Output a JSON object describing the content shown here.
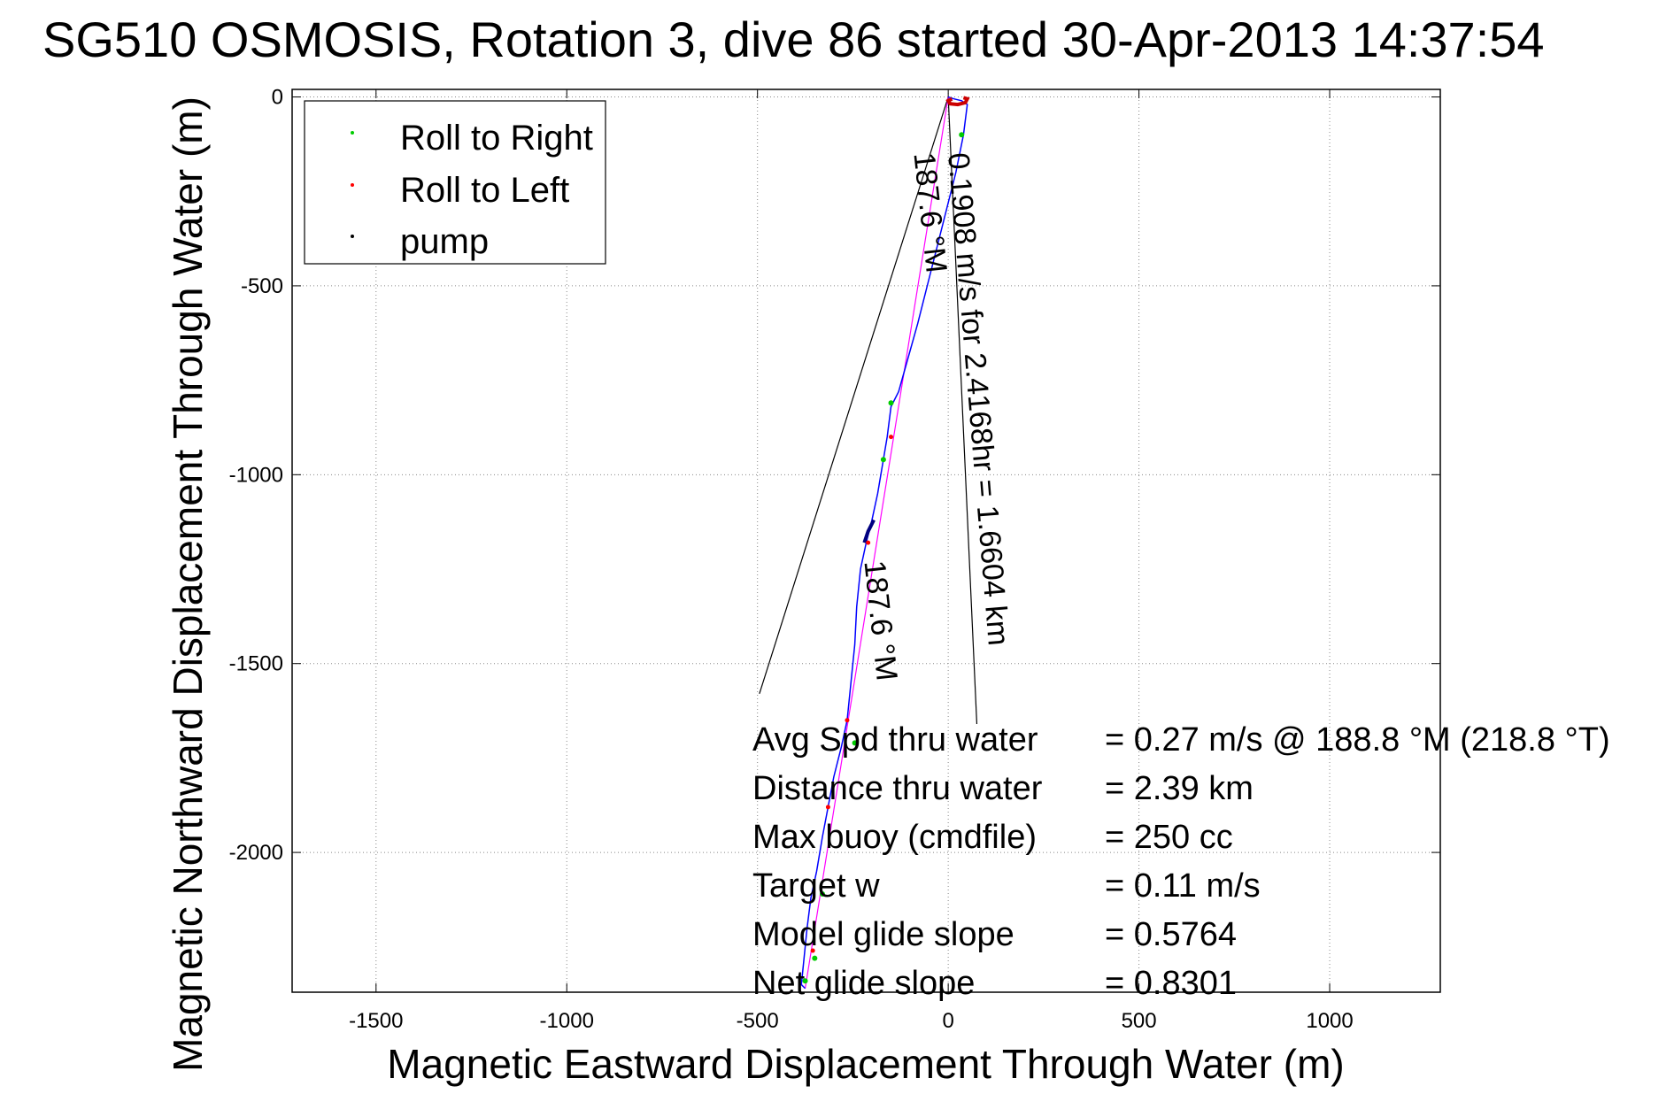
{
  "chart_data": {
    "type": "line",
    "title": "SG510 OSMOSIS, Rotation 3, dive 86 started 30-Apr-2013 14:37:54",
    "xlabel": "Magnetic Eastward Displacement Through Water (m)",
    "ylabel": "Magnetic Northward Displacement Through Water (m)",
    "xlim": [
      -1720,
      1290
    ],
    "ylim": [
      -2370,
      20
    ],
    "x_ticks": [
      -1500,
      -1000,
      -500,
      0,
      500,
      1000
    ],
    "y_ticks": [
      0,
      -500,
      -1000,
      -1500,
      -2000
    ],
    "x_tick_labels": [
      "-1500",
      "-1000",
      "-500",
      "0",
      "500",
      "1000"
    ],
    "y_tick_labels": [
      "0",
      "-500",
      "-1000",
      "-1500",
      "-2000"
    ],
    "grid": true,
    "legend_position": "top-left",
    "legend": [
      {
        "label": "Roll to Right",
        "color": "#00cc00"
      },
      {
        "label": "Roll to Left",
        "color": "#ff0000"
      },
      {
        "label": "pump",
        "color": "#000000"
      }
    ],
    "track": {
      "color": "#0000ff",
      "x": [
        0,
        15,
        35,
        50,
        40,
        20,
        -30,
        -80,
        -130,
        -150,
        -160,
        -170,
        -185,
        -200,
        -215,
        -230,
        -240,
        -245,
        -255,
        -265,
        -280,
        -300,
        -315,
        -330,
        -345,
        -360,
        -370,
        -375,
        -380,
        -385,
        -375
      ],
      "y": [
        0,
        -5,
        -10,
        -20,
        -100,
        -200,
        -400,
        -600,
        -780,
        -820,
        -900,
        -960,
        -1050,
        -1120,
        -1180,
        -1250,
        -1350,
        -1450,
        -1550,
        -1650,
        -1720,
        -1800,
        -1880,
        -1960,
        -2050,
        -2120,
        -2200,
        -2250,
        -2300,
        -2350,
        -2360
      ]
    },
    "straight_track": {
      "color": "#ff00ff",
      "x": [
        0,
        -375
      ],
      "y": [
        0,
        -2360
      ]
    },
    "roll_right_points": {
      "color": "#00cc00",
      "x": [
        35,
        -150,
        -170,
        -245,
        -330,
        -350,
        -375
      ],
      "y": [
        -100,
        -810,
        -960,
        -1710,
        -2110,
        -2280,
        -2340
      ]
    },
    "roll_left_points": {
      "color": "#ff0000",
      "x": [
        -150,
        -210,
        -265,
        -315,
        -355
      ],
      "y": [
        -900,
        -1180,
        -1650,
        -1880,
        -2260
      ]
    },
    "pump_segment": {
      "color": "#000080",
      "x": [
        -195,
        -210,
        -220
      ],
      "y": [
        -1120,
        -1150,
        -1180
      ]
    },
    "surface_loop": {
      "color": "#cc0000",
      "x": [
        10,
        0,
        5,
        25,
        45,
        50,
        40
      ],
      "y": [
        -5,
        -10,
        -18,
        -20,
        -15,
        -5,
        -2
      ]
    },
    "annotations": [
      {
        "text": "0.1908 m/s for 2.4168hr = 1.6604 km",
        "x": 0,
        "y": -150,
        "rotation": 85.3
      },
      {
        "text": "187.6 °M",
        "x": -90,
        "y": -150,
        "rotation": 83.9
      },
      {
        "text": "187.6 °M",
        "x": -220,
        "y": -1230,
        "rotation": 83.9
      }
    ],
    "wedge_lines": [
      {
        "x": [
          0,
          -495
        ],
        "y": [
          0,
          -1580
        ]
      },
      {
        "x": [
          0,
          75
        ],
        "y": [
          0,
          -1660
        ]
      }
    ],
    "stats": [
      {
        "label": "Avg Spd thru water",
        "value": "=  0.27 m/s @ 188.8 °M (218.8 °T)"
      },
      {
        "label": "Distance thru water",
        "value": "=  2.39 km"
      },
      {
        "label": "Max buoy (cmdfile)",
        "value": "= 250 cc"
      },
      {
        "label": "Target w",
        "value": "= 0.11 m/s"
      },
      {
        "label": "Model glide slope",
        "value": "= 0.5764"
      },
      {
        "label": "Net glide slope",
        "value": "= 0.8301"
      }
    ]
  }
}
